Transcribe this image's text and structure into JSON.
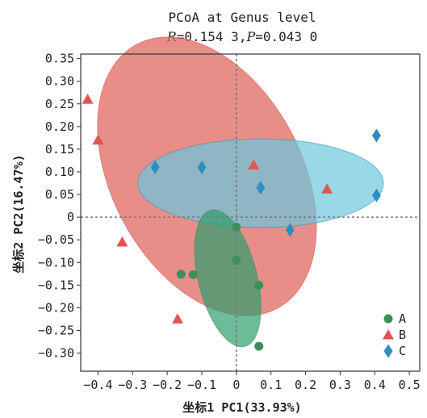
{
  "chart_data": {
    "type": "scatter",
    "title_line1": "PCoA at Genus level",
    "title_R_label": "R",
    "title_R_value": "=0.154 3,",
    "title_P_label": "P",
    "title_P_value": "=0.043 0",
    "xlabel": "坐标1 PC1(33.93%)",
    "ylabel": "坐标2 PC2(16.47%)",
    "xlim": [
      -0.45,
      0.53
    ],
    "ylim": [
      -0.34,
      0.36
    ],
    "x_ticks": [
      {
        "v": -0.4,
        "label": "−0.4"
      },
      {
        "v": -0.3,
        "label": "−0.3"
      },
      {
        "v": -0.2,
        "label": "−0.2"
      },
      {
        "v": -0.1,
        "label": "−0.1"
      },
      {
        "v": 0.0,
        "label": "0"
      },
      {
        "v": 0.1,
        "label": "0.1"
      },
      {
        "v": 0.2,
        "label": "0.2"
      },
      {
        "v": 0.3,
        "label": "0.3"
      },
      {
        "v": 0.4,
        "label": "0.4"
      },
      {
        "v": 0.5,
        "label": "0.5"
      }
    ],
    "y_ticks": [
      {
        "v": 0.35,
        "label": "0.35"
      },
      {
        "v": 0.3,
        "label": "0.30"
      },
      {
        "v": 0.25,
        "label": "0.25"
      },
      {
        "v": 0.2,
        "label": "0.20"
      },
      {
        "v": 0.15,
        "label": "0.15"
      },
      {
        "v": 0.1,
        "label": "0.10"
      },
      {
        "v": 0.05,
        "label": "0.05"
      },
      {
        "v": 0.0,
        "label": "0"
      },
      {
        "v": -0.05,
        "label": "−0.05"
      },
      {
        "v": -0.1,
        "label": "−0.10"
      },
      {
        "v": -0.15,
        "label": "−0.15"
      },
      {
        "v": -0.2,
        "label": "−0.20"
      },
      {
        "v": -0.25,
        "label": "−0.25"
      },
      {
        "v": -0.3,
        "label": "−0.30"
      }
    ],
    "zero_lines": true,
    "legend_position": "bottom-right",
    "series": [
      {
        "name": "A",
        "marker": "circle",
        "color": "#3a8f5a",
        "fill": "#2e9e6e",
        "points": [
          [
            0.0,
            -0.022
          ],
          [
            0.0,
            -0.095
          ],
          [
            -0.16,
            -0.126
          ],
          [
            -0.125,
            -0.127
          ],
          [
            0.065,
            -0.15
          ],
          [
            0.065,
            -0.285
          ]
        ],
        "ellipse": {
          "cx": -0.025,
          "cy": -0.135,
          "rx": 0.085,
          "ry": 0.155,
          "angle_deg": -14
        }
      },
      {
        "name": "B",
        "marker": "triangle",
        "color": "#e05550",
        "fill": "#e06860",
        "points": [
          [
            -0.43,
            0.26
          ],
          [
            -0.4,
            0.17
          ],
          [
            -0.33,
            -0.055
          ],
          [
            -0.17,
            -0.225
          ],
          [
            0.05,
            0.115
          ],
          [
            0.262,
            0.062
          ]
        ],
        "ellipse": {
          "cx": -0.085,
          "cy": 0.09,
          "rx": 0.275,
          "ry": 0.33,
          "angle_deg": -28
        }
      },
      {
        "name": "C",
        "marker": "diamond",
        "color": "#2e8ec0",
        "fill": "#6cc7dd",
        "points": [
          [
            -0.235,
            0.11
          ],
          [
            -0.1,
            0.11
          ],
          [
            0.07,
            0.065
          ],
          [
            0.155,
            -0.028
          ],
          [
            0.405,
            0.18
          ],
          [
            0.405,
            0.048
          ]
        ],
        "ellipse": {
          "cx": 0.07,
          "cy": 0.075,
          "rx": 0.355,
          "ry": 0.098,
          "angle_deg": 0
        }
      }
    ]
  }
}
